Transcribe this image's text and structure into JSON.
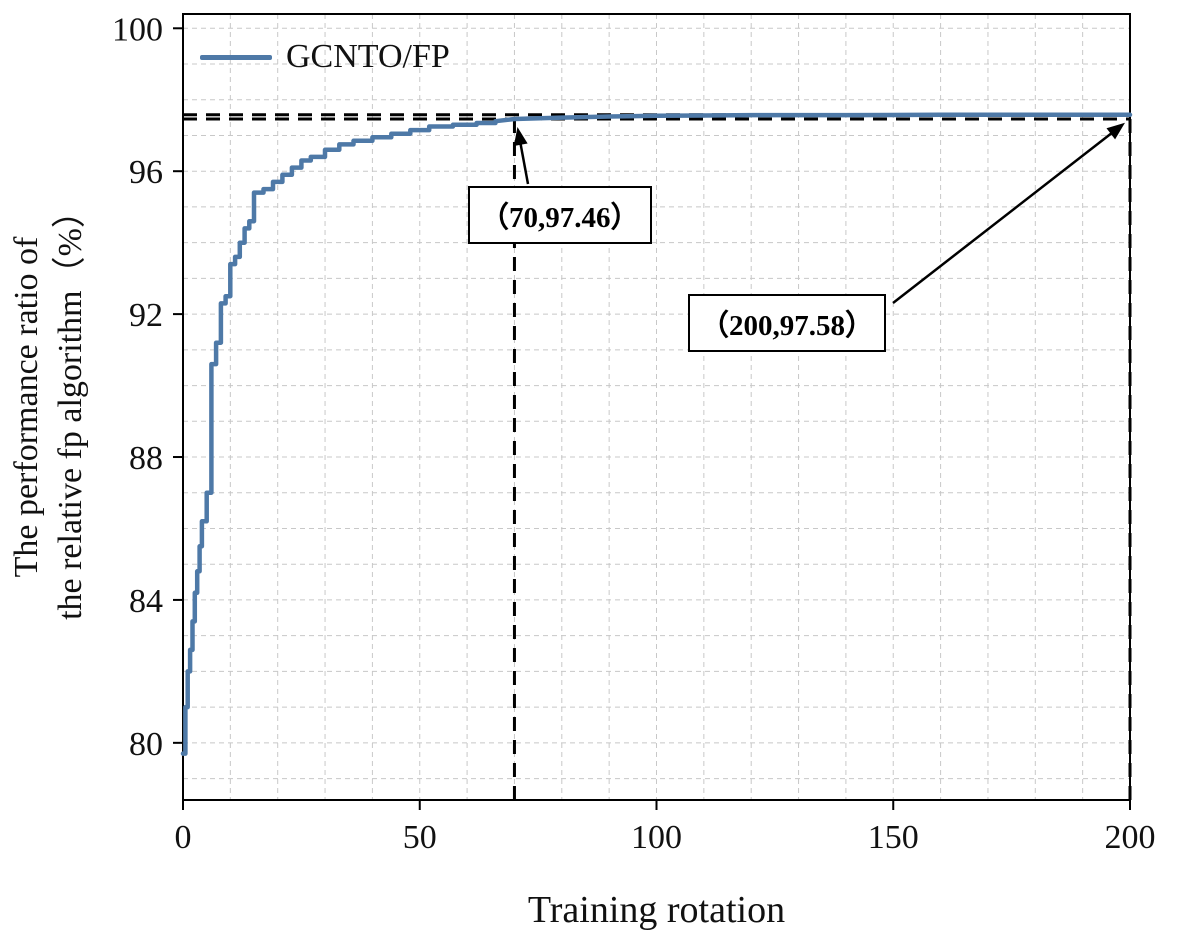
{
  "chart_data": {
    "type": "line",
    "title": "",
    "xlabel": "Training rotation",
    "ylabel_lines": [
      "The performance ratio of",
      "the relative fp algorithm（%）"
    ],
    "xlim": [
      0,
      200
    ],
    "ylim": [
      78.4,
      100.4
    ],
    "x_ticks": [
      0,
      50,
      100,
      150,
      200
    ],
    "y_ticks": [
      80,
      84,
      88,
      92,
      96,
      100
    ],
    "grid": {
      "on": true,
      "x_minor_step": 10,
      "y_minor_step": 1
    },
    "legend_position": "upper-left",
    "series": [
      {
        "name": "GCNTO/FP",
        "color": "#4e79a7",
        "points": [
          [
            0,
            79.7
          ],
          [
            0.5,
            79.7
          ],
          [
            0.5,
            81.0
          ],
          [
            1,
            81.0
          ],
          [
            1,
            82.0
          ],
          [
            1.5,
            82.0
          ],
          [
            1.5,
            82.6
          ],
          [
            2,
            82.6
          ],
          [
            2,
            83.4
          ],
          [
            2.5,
            83.4
          ],
          [
            2.5,
            84.2
          ],
          [
            3,
            84.2
          ],
          [
            3,
            84.8
          ],
          [
            3.5,
            84.8
          ],
          [
            3.5,
            85.5
          ],
          [
            4,
            85.5
          ],
          [
            4,
            86.2
          ],
          [
            5,
            86.2
          ],
          [
            5,
            87.0
          ],
          [
            6,
            87.0
          ],
          [
            6,
            90.6
          ],
          [
            7,
            90.6
          ],
          [
            7,
            91.2
          ],
          [
            8,
            91.2
          ],
          [
            8,
            92.3
          ],
          [
            9,
            92.3
          ],
          [
            9,
            92.5
          ],
          [
            10,
            92.5
          ],
          [
            10,
            93.4
          ],
          [
            11,
            93.4
          ],
          [
            11,
            93.6
          ],
          [
            12,
            93.6
          ],
          [
            12,
            94.0
          ],
          [
            13,
            94.0
          ],
          [
            13,
            94.4
          ],
          [
            14,
            94.4
          ],
          [
            14,
            94.6
          ],
          [
            15,
            94.6
          ],
          [
            15,
            95.4
          ],
          [
            17,
            95.4
          ],
          [
            17,
            95.5
          ],
          [
            19,
            95.5
          ],
          [
            19,
            95.7
          ],
          [
            21,
            95.7
          ],
          [
            21,
            95.9
          ],
          [
            23,
            95.9
          ],
          [
            23,
            96.1
          ],
          [
            25,
            96.1
          ],
          [
            25,
            96.3
          ],
          [
            27,
            96.3
          ],
          [
            27,
            96.4
          ],
          [
            30,
            96.4
          ],
          [
            30,
            96.6
          ],
          [
            33,
            96.6
          ],
          [
            33,
            96.75
          ],
          [
            36,
            96.75
          ],
          [
            36,
            96.85
          ],
          [
            40,
            96.85
          ],
          [
            40,
            96.95
          ],
          [
            44,
            96.95
          ],
          [
            44,
            97.05
          ],
          [
            48,
            97.05
          ],
          [
            48,
            97.15
          ],
          [
            52,
            97.15
          ],
          [
            52,
            97.25
          ],
          [
            57,
            97.25
          ],
          [
            57,
            97.3
          ],
          [
            62,
            97.3
          ],
          [
            62,
            97.35
          ],
          [
            66,
            97.35
          ],
          [
            66,
            97.4
          ],
          [
            70,
            97.46
          ],
          [
            80,
            97.5
          ],
          [
            90,
            97.53
          ],
          [
            100,
            97.55
          ],
          [
            110,
            97.56
          ],
          [
            120,
            97.57
          ],
          [
            140,
            97.57
          ],
          [
            160,
            97.58
          ],
          [
            180,
            97.58
          ],
          [
            200,
            97.58
          ]
        ]
      }
    ],
    "annotations": [
      {
        "label": "（70,97.46）",
        "point": [
          70,
          97.46
        ]
      },
      {
        "label": "（200,97.58）",
        "point": [
          200,
          97.58
        ]
      }
    ],
    "dashed_marker_lines": {
      "vertical_x": [
        70,
        200
      ],
      "horizontal_y": [
        97.46,
        97.58
      ]
    }
  },
  "colors": {
    "line": "#4e79a7",
    "grid": "#c8c8c8",
    "axis": "#000000",
    "marker_dash": "#000000"
  }
}
